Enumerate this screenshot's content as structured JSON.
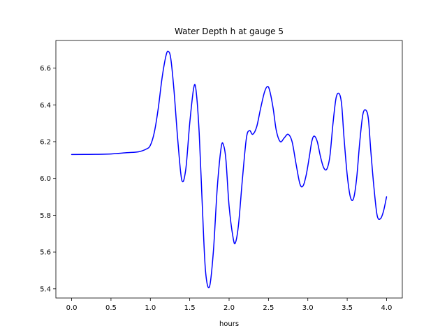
{
  "chart_data": {
    "type": "line",
    "title": "Water Depth h at gauge 5",
    "xlabel": "hours",
    "ylabel": "",
    "xlim": [
      -0.2,
      4.2
    ],
    "ylim": [
      5.35,
      6.75
    ],
    "xticks": [
      0.0,
      0.5,
      1.0,
      1.5,
      2.0,
      2.5,
      3.0,
      3.5,
      4.0
    ],
    "xtick_labels": [
      "0.0",
      "0.5",
      "1.0",
      "1.5",
      "2.0",
      "2.5",
      "3.0",
      "3.5",
      "4.0"
    ],
    "yticks": [
      5.4,
      5.6,
      5.8,
      6.0,
      6.2,
      6.4,
      6.6
    ],
    "ytick_labels": [
      "5.4",
      "5.6",
      "5.8",
      "6.0",
      "6.2",
      "6.4",
      "6.6"
    ],
    "grid": false,
    "series": [
      {
        "color": "#0000ff",
        "x": [
          0.0,
          0.3,
          0.5,
          0.7,
          0.85,
          0.95,
          1.0,
          1.05,
          1.1,
          1.15,
          1.2,
          1.23,
          1.26,
          1.3,
          1.35,
          1.4,
          1.45,
          1.5,
          1.55,
          1.58,
          1.62,
          1.66,
          1.7,
          1.75,
          1.8,
          1.85,
          1.9,
          1.93,
          1.96,
          2.0,
          2.05,
          2.08,
          2.12,
          2.17,
          2.22,
          2.26,
          2.3,
          2.35,
          2.4,
          2.45,
          2.49,
          2.52,
          2.56,
          2.6,
          2.65,
          2.7,
          2.75,
          2.8,
          2.85,
          2.9,
          2.94,
          2.98,
          3.02,
          3.05,
          3.08,
          3.12,
          3.16,
          3.2,
          3.24,
          3.28,
          3.32,
          3.36,
          3.4,
          3.43,
          3.46,
          3.5,
          3.54,
          3.58,
          3.62,
          3.66,
          3.7,
          3.74,
          3.77,
          3.8,
          3.84,
          3.88,
          3.92,
          3.96,
          4.0
        ],
        "y": [
          6.13,
          6.131,
          6.133,
          6.14,
          6.145,
          6.16,
          6.18,
          6.25,
          6.38,
          6.55,
          6.67,
          6.69,
          6.65,
          6.48,
          6.2,
          5.99,
          6.05,
          6.3,
          6.49,
          6.48,
          6.25,
          5.85,
          5.5,
          5.41,
          5.6,
          5.95,
          6.17,
          6.18,
          6.1,
          5.85,
          5.68,
          5.65,
          5.75,
          6.0,
          6.22,
          6.26,
          6.24,
          6.28,
          6.38,
          6.47,
          6.5,
          6.47,
          6.38,
          6.26,
          6.2,
          6.22,
          6.24,
          6.2,
          6.08,
          5.97,
          5.96,
          6.02,
          6.12,
          6.2,
          6.23,
          6.2,
          6.12,
          6.06,
          6.05,
          6.12,
          6.3,
          6.44,
          6.46,
          6.4,
          6.22,
          6.02,
          5.9,
          5.89,
          6.0,
          6.2,
          6.35,
          6.37,
          6.32,
          6.15,
          5.95,
          5.8,
          5.78,
          5.82,
          5.9
        ]
      }
    ]
  }
}
